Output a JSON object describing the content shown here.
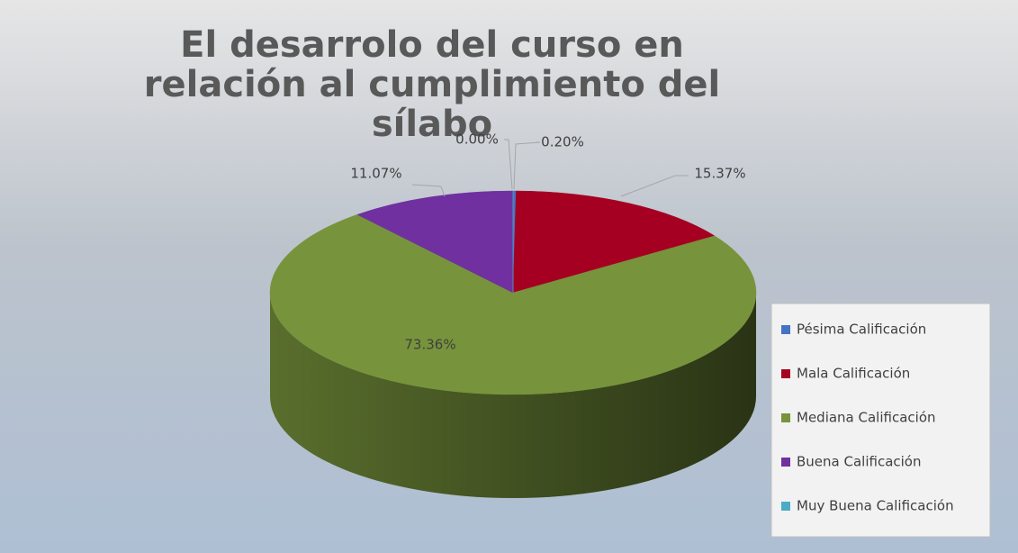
{
  "chart_data": {
    "type": "pie",
    "title": "El desarrolo del curso en relación al cumplimiento del sílabo",
    "categories": [
      "Pésima Calificación",
      "Mala Calificación",
      "Mediana Calificación",
      "Buena Calificación",
      "Muy Buena Calificación"
    ],
    "values": [
      0.2,
      15.37,
      73.36,
      11.07,
      0
    ],
    "value_labels": [
      "0.20%",
      "15.37%",
      "73.36%",
      "11.07%",
      "0.00%"
    ],
    "colors": [
      "#4472c4",
      "#a50021",
      "#77933c",
      "#7030a0",
      "#4bacc6"
    ],
    "legend": "right"
  }
}
